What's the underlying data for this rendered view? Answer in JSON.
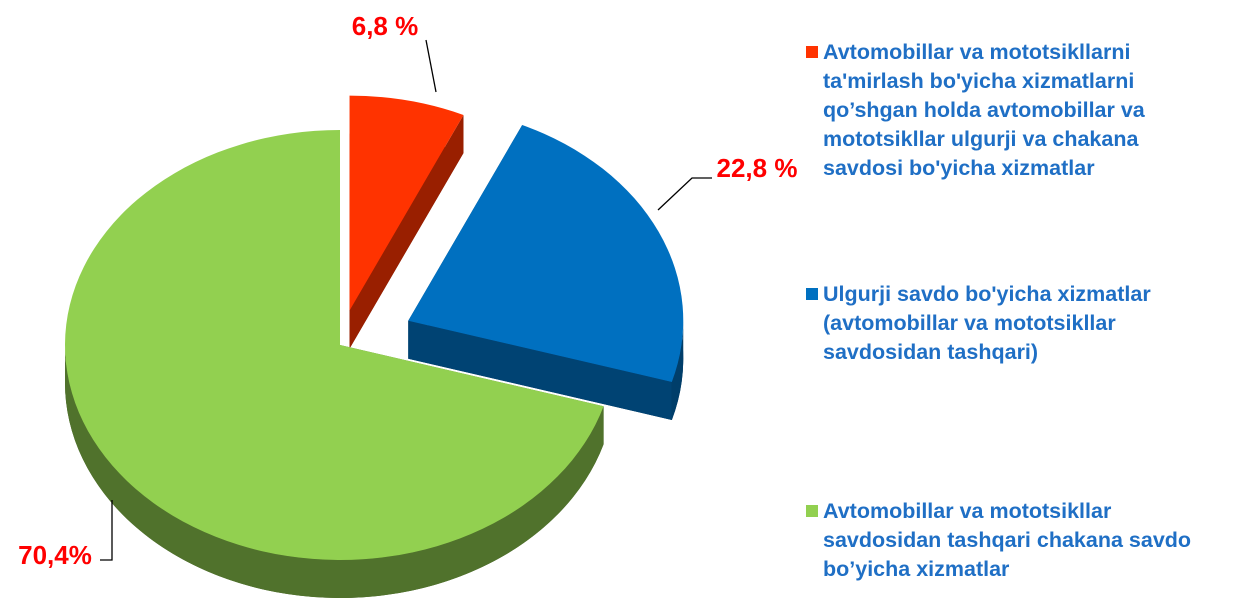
{
  "chart_data": {
    "type": "pie",
    "categories": [
      "Avtomobillar va mototsikllarni ta'mirlash bo'yicha xizmatlarni qo’shgan holda avtomobillar va mototsikllar ulgurji va chakana savdosi bo'yicha xizmatlar",
      "Ulgurji savdo bo'yicha xizmatlar (avtomobillar va mototsikllar savdosidan tashqari)",
      "Avtomobillar va mototsikllar savdosidan  tashqari chakana savdo bo’yicha xizmatlar"
    ],
    "values": [
      6.8,
      22.8,
      70.4
    ],
    "value_labels": [
      "6,8 %",
      "22,8 %",
      "70,4%"
    ],
    "colors": [
      "#ff3300",
      "#0070c0",
      "#92d050"
    ]
  }
}
